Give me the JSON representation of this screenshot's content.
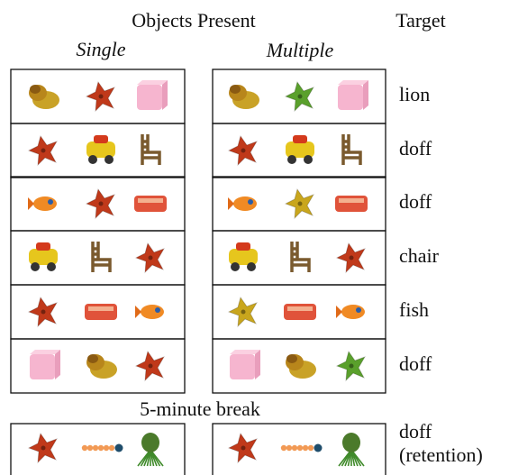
{
  "header": {
    "objects_present": "Objects Present",
    "target": "Target",
    "single": "Single",
    "multiple": "Multiple"
  },
  "rows": [
    {
      "target": "lion"
    },
    {
      "target": "doff"
    },
    {
      "target": "doff"
    },
    {
      "target": "chair"
    },
    {
      "target": "fish"
    },
    {
      "target": "doff"
    }
  ],
  "break_label": "5-minute break",
  "retention": {
    "target_lines": [
      "doff",
      "(retention)"
    ]
  }
}
